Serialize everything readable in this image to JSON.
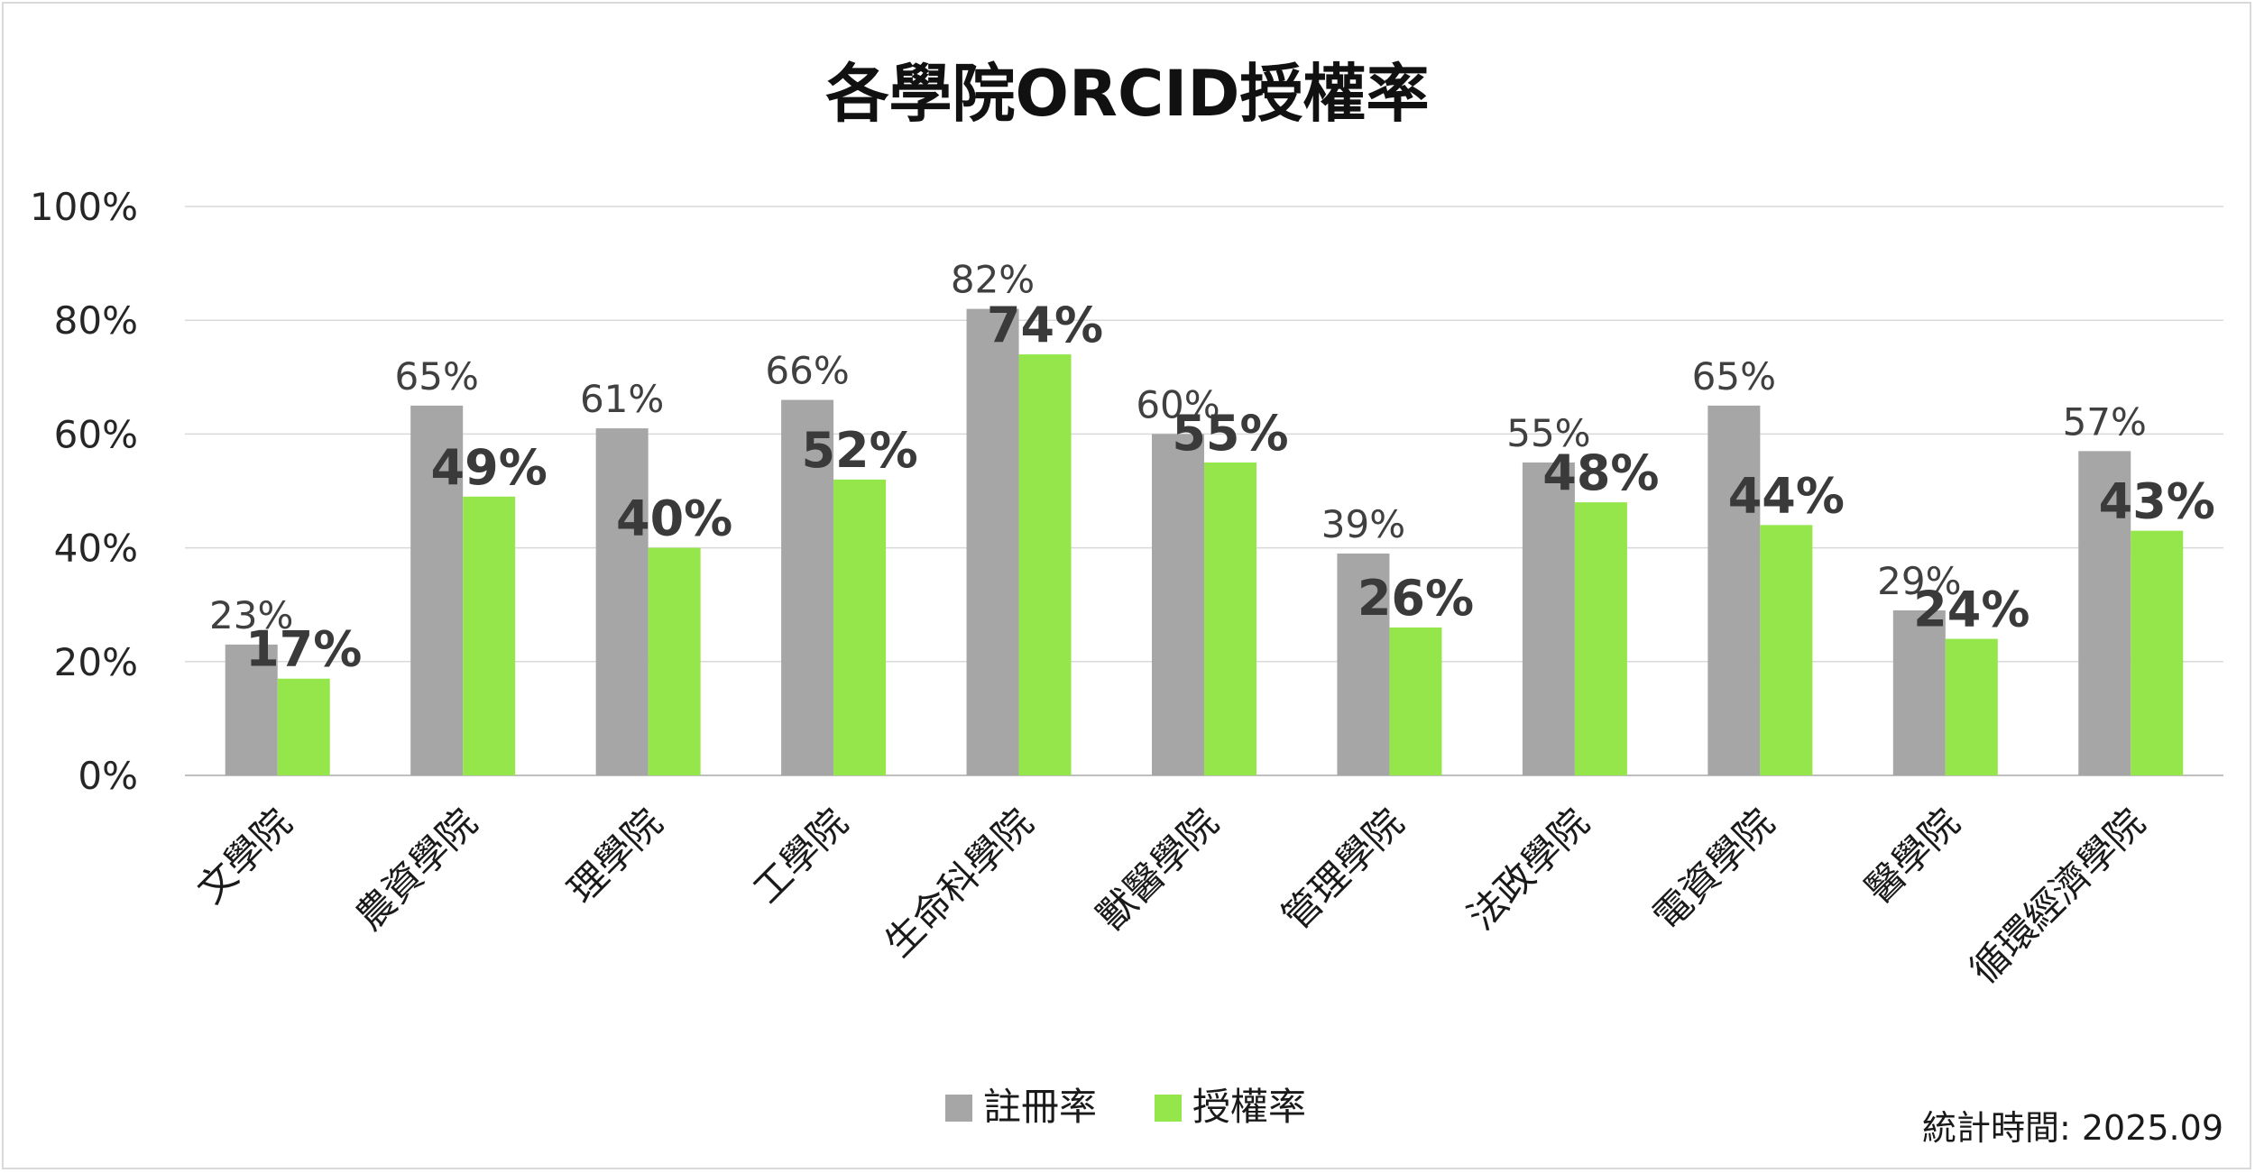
{
  "chart_data": {
    "type": "bar",
    "title": "各學院ORCID授權率",
    "categories": [
      "文學院",
      "農資學院",
      "理學院",
      "工學院",
      "生命科學院",
      "獸醫學院",
      "管理學院",
      "法政學院",
      "電資學院",
      "醫學院",
      "循環經濟學院"
    ],
    "series": [
      {
        "name": "註冊率",
        "color": "#a6a6a6",
        "values": [
          23,
          65,
          61,
          66,
          82,
          60,
          39,
          55,
          65,
          29,
          57
        ]
      },
      {
        "name": "授權率",
        "color": "#95e64b",
        "values": [
          17,
          49,
          40,
          52,
          74,
          55,
          26,
          48,
          44,
          24,
          43
        ]
      }
    ],
    "y_ticks": [
      "0%",
      "20%",
      "40%",
      "60%",
      "80%",
      "100%"
    ],
    "ylim": [
      0,
      100
    ],
    "value_suffix": "%",
    "grid": true,
    "legend_position": "bottom"
  },
  "footnote": "統計時間: 2025.09"
}
